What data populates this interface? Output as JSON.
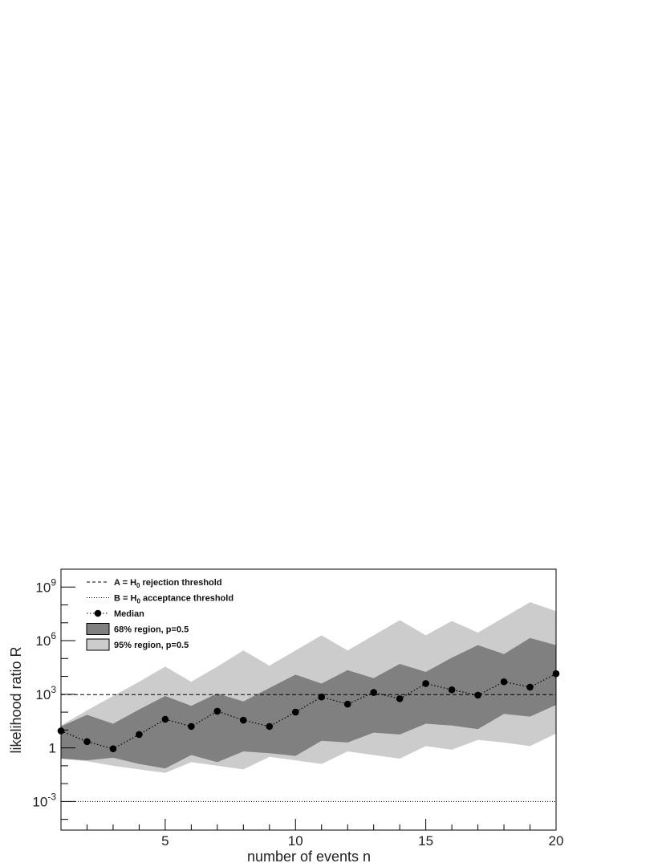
{
  "chart_data": {
    "type": "line",
    "xlabel": "number of events n",
    "ylabel": "likelihood ratio R",
    "xlim": [
      1,
      20
    ],
    "ylim_log10": [
      -4.6,
      10
    ],
    "y_scale": "log",
    "x_ticks": [
      5,
      10,
      15,
      20
    ],
    "x_tick_labels": [
      "5",
      "10",
      "15",
      "20"
    ],
    "y_ticks_log10": [
      -3,
      0,
      3,
      6,
      9
    ],
    "y_tick_labels": [
      {
        "base": "10",
        "exp": "-3"
      },
      {
        "base": "1",
        "exp": ""
      },
      {
        "base": "10",
        "exp": "3"
      },
      {
        "base": "10",
        "exp": "6"
      },
      {
        "base": "10",
        "exp": "9"
      }
    ],
    "n": [
      1,
      2,
      3,
      4,
      5,
      6,
      7,
      8,
      9,
      10,
      11,
      12,
      13,
      14,
      15,
      16,
      17,
      18,
      19,
      20
    ],
    "median_log10": [
      0.95,
      0.35,
      -0.05,
      0.75,
      1.6,
      1.2,
      2.05,
      1.55,
      1.2,
      2.0,
      2.85,
      2.45,
      3.1,
      2.75,
      3.6,
      3.25,
      2.95,
      3.7,
      3.4,
      4.15
    ],
    "band68_low_log10": [
      -0.6,
      -0.7,
      -0.55,
      -0.9,
      -1.15,
      -0.4,
      -0.8,
      -0.2,
      -0.3,
      -0.45,
      0.4,
      0.3,
      0.85,
      0.75,
      1.35,
      1.25,
      1.05,
      1.9,
      1.75,
      2.4
    ],
    "band68_high_log10": [
      1.2,
      1.85,
      1.35,
      2.15,
      2.9,
      2.35,
      3.05,
      2.6,
      3.35,
      4.1,
      3.6,
      4.35,
      3.9,
      4.7,
      4.25,
      5.05,
      5.75,
      5.25,
      6.15,
      5.75
    ],
    "band95_low_log10": [
      -0.6,
      -0.75,
      -1.0,
      -1.2,
      -1.4,
      -0.8,
      -1.0,
      -1.2,
      -0.5,
      -0.7,
      -0.9,
      -0.2,
      -0.4,
      -0.6,
      0.1,
      -0.1,
      0.45,
      0.3,
      0.1,
      0.8
    ],
    "band95_high_log10": [
      1.25,
      2.1,
      2.9,
      3.7,
      4.55,
      3.7,
      4.55,
      5.45,
      4.6,
      5.45,
      6.3,
      5.45,
      6.3,
      7.15,
      6.3,
      7.1,
      6.45,
      7.3,
      8.15,
      7.65
    ],
    "thresholds": {
      "A_log10": 2.98,
      "B_log10": -3.0
    },
    "legend": {
      "position": "top-left",
      "entries": [
        {
          "label": "A = H",
          "sub": "0",
          "rest": " rejection threshold",
          "style": "dashed"
        },
        {
          "label": "B = H",
          "sub": "0",
          "rest": " acceptance threshold",
          "style": "dotted"
        },
        {
          "label": "Median",
          "sub": "",
          "rest": "",
          "style": "marker-dotted"
        },
        {
          "label": "68% region, p=0.5",
          "sub": "",
          "rest": "",
          "style": "fill-dark"
        },
        {
          "label": "95% region, p=0.5",
          "sub": "",
          "rest": "",
          "style": "fill-light"
        }
      ]
    },
    "colors": {
      "band95": "#cccccc",
      "band68": "#808080",
      "median": "#000000",
      "threshold": "#000000"
    },
    "grid": false
  }
}
